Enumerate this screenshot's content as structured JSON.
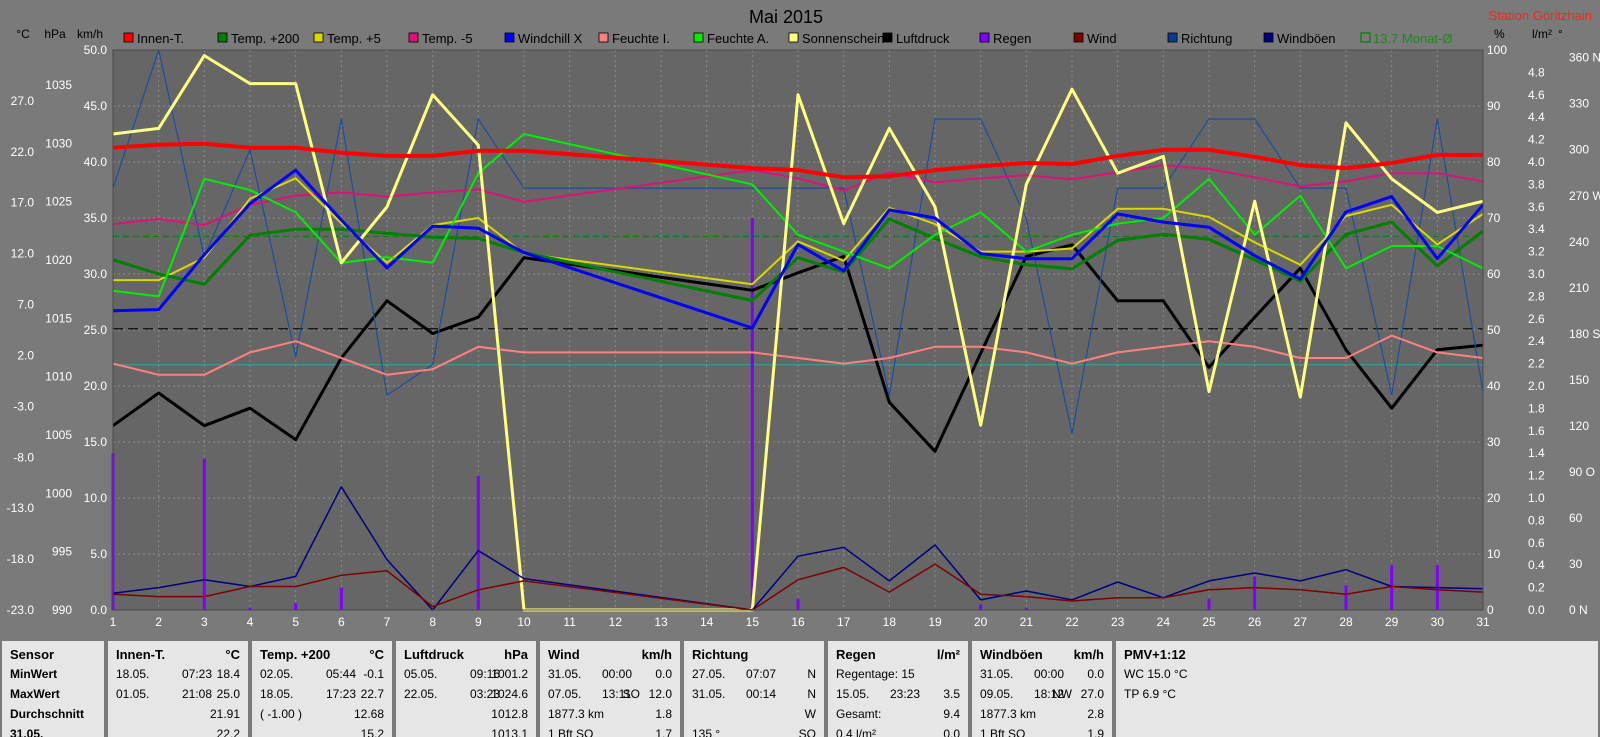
{
  "chart_data": {
    "type": "line",
    "title": "Mai 2015",
    "station": "Station Göritzhain",
    "x": [
      1,
      2,
      3,
      4,
      5,
      6,
      7,
      8,
      9,
      10,
      11,
      12,
      13,
      14,
      15,
      16,
      17,
      18,
      19,
      20,
      21,
      22,
      23,
      24,
      25,
      26,
      27,
      28,
      29,
      30,
      31
    ],
    "xlim": [
      1,
      31
    ],
    "axes": {
      "temp": {
        "unit": "°C",
        "min": -23,
        "max": 32,
        "ticks": [
          "27.0",
          "22.0",
          "17.0",
          "12.0",
          "7.0",
          "2.0",
          "-3.0",
          "-8.0",
          "-13.0",
          "-18.0",
          "-23.0"
        ],
        "tick_values": [
          27,
          22,
          17,
          12,
          7,
          2,
          -3,
          -8,
          -13,
          -18,
          -23
        ]
      },
      "press": {
        "unit": "hPa",
        "min": 990,
        "max": 1038,
        "ticks": [
          "1035",
          "1030",
          "1025",
          "1020",
          "1015",
          "1010",
          "1005",
          "1000",
          "995",
          "990"
        ],
        "tick_values": [
          1035,
          1030,
          1025,
          1020,
          1015,
          1010,
          1005,
          1000,
          995,
          990
        ]
      },
      "wind": {
        "unit": "km/h",
        "min": 0,
        "max": 50,
        "ticks": [
          "50.0",
          "45.0",
          "40.0",
          "35.0",
          "30.0",
          "25.0",
          "20.0",
          "15.0",
          "10.0",
          "5.0",
          "0.0"
        ],
        "tick_values": [
          50,
          45,
          40,
          35,
          30,
          25,
          20,
          15,
          10,
          5,
          0
        ]
      },
      "pct": {
        "unit": "%",
        "min": 0,
        "max": 100,
        "ticks": [
          "100",
          "90",
          "80",
          "70",
          "60",
          "50",
          "40",
          "30",
          "20",
          "10",
          "0"
        ],
        "tick_values": [
          100,
          90,
          80,
          70,
          60,
          50,
          40,
          30,
          20,
          10,
          0
        ]
      },
      "rain": {
        "unit": "l/m²",
        "min": 0,
        "max": 5,
        "ticks": [
          "4.8",
          "4.6",
          "4.4",
          "4.2",
          "4.0",
          "3.8",
          "3.6",
          "3.4",
          "3.2",
          "3.0",
          "2.8",
          "2.6",
          "2.4",
          "2.2",
          "2.0",
          "1.8",
          "1.6",
          "1.4",
          "1.2",
          "1.0",
          "0.8",
          "0.6",
          "0.4",
          "0.2",
          "0.0"
        ],
        "tick_values": [
          4.8,
          4.6,
          4.4,
          4.2,
          4.0,
          3.8,
          3.6,
          3.4,
          3.2,
          3.0,
          2.8,
          2.6,
          2.4,
          2.2,
          2.0,
          1.8,
          1.6,
          1.4,
          1.2,
          1.0,
          0.8,
          0.6,
          0.4,
          0.2,
          0.0
        ]
      },
      "dir": {
        "unit": "°",
        "min": 0,
        "max": 365,
        "ticks": [
          "360 N",
          "330",
          "300",
          "270 W",
          "240",
          "210",
          "180 S",
          "150",
          "120",
          "90  O",
          "60",
          "30",
          "0   N"
        ],
        "tick_values": [
          360,
          330,
          300,
          270,
          240,
          210,
          180,
          150,
          120,
          90,
          60,
          30,
          0
        ]
      }
    },
    "axis_headers": [
      "°C",
      "hPa",
      "km/h",
      "%",
      "l/m²",
      "°"
    ],
    "legend": [
      {
        "name": "Innen-T.",
        "color": "#ff0000"
      },
      {
        "name": "Temp. +200",
        "color": "#008000"
      },
      {
        "name": "Temp. +5",
        "color": "#d8d800"
      },
      {
        "name": "Temp. -5",
        "color": "#e0107a"
      },
      {
        "name": "Windchill X",
        "color": "#0000ff"
      },
      {
        "name": "Feuchte I.",
        "color": "#ff8080"
      },
      {
        "name": "Feuchte A.",
        "color": "#00ee00"
      },
      {
        "name": "Sonnenschein",
        "color": "#ffff80"
      },
      {
        "name": "Luftdruck",
        "color": "#000000"
      },
      {
        "name": "Regen",
        "color": "#8000ff"
      },
      {
        "name": "Wind",
        "color": "#800000"
      },
      {
        "name": "Richtung",
        "color": "#0a3a8a"
      },
      {
        "name": "Windböen",
        "color": "#000080"
      }
    ],
    "monthly_avg": {
      "label": "13.7 Monat-Ø",
      "value": 13.7,
      "color": "#008000"
    },
    "series": [
      {
        "name": "Luftdruck",
        "axis": "press",
        "color": "#000000",
        "width": 3,
        "values": [
          1005.8,
          1008.6,
          1005.8,
          1007.3,
          1004.6,
          1011.6,
          1016.5,
          1013.7,
          1015.1,
          1020.2,
          null,
          null,
          null,
          null,
          1017.4,
          1018.9,
          1020.3,
          1007.8,
          1003.6,
          1012.0,
          1020.3,
          1021.3,
          1016.5,
          1016.5,
          1010.8,
          1015.1,
          1019.3,
          1012.3,
          1007.3,
          1012.3,
          1012.7
        ]
      },
      {
        "name": "Richtung",
        "axis": "dir",
        "color": "#1a4fa0",
        "width": 1.2,
        "values": [
          275,
          365,
          230,
          300,
          165,
          320,
          140,
          160,
          320,
          275,
          null,
          null,
          null,
          null,
          275,
          275,
          275,
          140,
          320,
          320,
          255,
          115,
          275,
          275,
          320,
          320,
          275,
          275,
          140,
          320,
          142
        ]
      },
      {
        "name": "Temp. -5",
        "axis": "temp",
        "color": "#e0107a",
        "width": 2,
        "values": [
          14.9,
          15.4,
          14.8,
          16.8,
          17.7,
          18.0,
          17.6,
          18.0,
          18.3,
          17.1,
          null,
          null,
          null,
          null,
          20.2,
          19.4,
          18.2,
          20.0,
          19.0,
          19.4,
          19.7,
          19.3,
          20.0,
          20.7,
          20.3,
          19.5,
          18.6,
          19.1,
          19.9,
          19.9,
          19.1
        ]
      },
      {
        "name": "Feuchte I.",
        "axis": "pct",
        "color": "#ff8080",
        "width": 2,
        "values": [
          44,
          42,
          42,
          46,
          48,
          45,
          42,
          43,
          47,
          46,
          null,
          null,
          null,
          null,
          46,
          45,
          44,
          45,
          47,
          47,
          46,
          44,
          46,
          47,
          48,
          47,
          45,
          45,
          49,
          46,
          45
        ]
      },
      {
        "name": "Temp. +5",
        "axis": "temp",
        "color": "#d8d800",
        "width": 2,
        "values": [
          9.4,
          9.4,
          11.6,
          17.4,
          19.4,
          15.0,
          11.1,
          14.8,
          15.5,
          12.0,
          null,
          null,
          null,
          null,
          9.0,
          13.2,
          11.3,
          16.5,
          14.9,
          12.2,
          12.2,
          12.5,
          16.4,
          16.4,
          15.6,
          13.1,
          10.9,
          15.7,
          16.8,
          12.9,
          15.9
        ]
      },
      {
        "name": "Temp. +200",
        "axis": "temp",
        "color": "#008000",
        "width": 3,
        "values": [
          11.4,
          10.0,
          9.0,
          13.8,
          14.4,
          14.4,
          null,
          13.6,
          13.5,
          12.1,
          null,
          null,
          null,
          null,
          7.4,
          11.6,
          10.2,
          15.4,
          13.5,
          11.7,
          10.9,
          10.5,
          13.3,
          13.9,
          13.4,
          11.4,
          9.3,
          13.9,
          15.1,
          10.8,
          14.2
        ]
      },
      {
        "name": "Feuchte A.",
        "axis": "pct",
        "color": "#00ee00",
        "width": 2,
        "values": [
          57,
          56,
          77,
          75,
          71,
          62,
          63,
          62,
          78,
          85,
          null,
          null,
          null,
          null,
          76,
          67,
          64,
          61,
          67,
          71,
          64,
          67,
          69,
          70,
          77,
          67,
          74,
          61,
          65,
          65,
          61
        ]
      },
      {
        "name": "Sonnenschein",
        "axis": "pct",
        "color": "#ffff80",
        "width": 3,
        "values": [
          85,
          86,
          99,
          94,
          94,
          62,
          72,
          92,
          83,
          0,
          null,
          null,
          null,
          null,
          0,
          92,
          69,
          86,
          72,
          33,
          76,
          93,
          78,
          81,
          39,
          73,
          38,
          87,
          77,
          71,
          73
        ]
      },
      {
        "name": "Windchill X",
        "axis": "temp",
        "color": "#0000ff",
        "width": 3,
        "values": [
          6.4,
          6.5,
          11.9,
          16.9,
          20.2,
          15.3,
          10.6,
          14.7,
          14.5,
          12.1,
          null,
          null,
          null,
          null,
          4.7,
          12.9,
          10.3,
          16.3,
          15.5,
          12.0,
          11.5,
          11.5,
          15.9,
          15.1,
          14.6,
          11.8,
          9.5,
          16.1,
          17.6,
          11.5,
          16.8
        ]
      },
      {
        "name": "Innen-T.",
        "axis": "temp",
        "color": "#ff0000",
        "width": 4,
        "values": [
          22.4,
          22.7,
          22.8,
          22.4,
          22.4,
          21.9,
          21.6,
          21.6,
          22.1,
          22.1,
          null,
          null,
          null,
          null,
          20.4,
          20.2,
          19.5,
          19.6,
          20.2,
          20.6,
          20.9,
          20.8,
          21.6,
          22.2,
          22.2,
          21.5,
          20.7,
          20.4,
          20.9,
          21.7,
          21.7
        ]
      },
      {
        "name": "Windböen",
        "axis": "wind",
        "color": "#000080",
        "width": 1.5,
        "values": [
          1.5,
          2.0,
          2.7,
          2.1,
          3.0,
          11.0,
          4.5,
          0.0,
          5.3,
          2.8,
          null,
          null,
          null,
          null,
          0.0,
          4.8,
          5.6,
          2.6,
          5.8,
          0.9,
          1.7,
          0.9,
          2.5,
          1.1,
          2.6,
          3.3,
          2.6,
          3.6,
          2.1,
          2.0,
          1.9
        ]
      },
      {
        "name": "Wind",
        "axis": "wind",
        "color": "#800000",
        "width": 1.5,
        "values": [
          1.4,
          1.2,
          1.2,
          2.1,
          2.1,
          3.1,
          3.5,
          0.3,
          1.8,
          2.6,
          null,
          null,
          null,
          null,
          0.0,
          2.7,
          3.8,
          1.6,
          4.1,
          1.4,
          1.2,
          0.8,
          1.1,
          1.1,
          1.8,
          2.0,
          1.8,
          1.4,
          2.1,
          1.8,
          1.6
        ]
      }
    ],
    "rain_bars": {
      "axis": "rain",
      "color": "#8000ff",
      "values": [
        1.4,
        0,
        1.35,
        0.02,
        0.06,
        0.2,
        0,
        0,
        1.2,
        0,
        0,
        0,
        0,
        0,
        3.5,
        0.1,
        0,
        0,
        0,
        0.05,
        0.02,
        0,
        0,
        0,
        0.1,
        0.3,
        0,
        0.22,
        0.4,
        0.4,
        0
      ]
    },
    "reference_lines": [
      {
        "axis": "press",
        "value": 1014.1,
        "color": "#000000",
        "dash": "10,5",
        "width": 1.2
      },
      {
        "axis": "temp",
        "value": 13.7,
        "color": "#008000",
        "dash": "6,4",
        "width": 1
      },
      {
        "axis": "pct",
        "value": 43.8,
        "color": "#3aa0a0",
        "dash": "",
        "width": 1
      }
    ]
  },
  "stats": {
    "sensor": {
      "title": "Sensor",
      "rows": [
        "MinWert",
        "MaxWert",
        "Durchschnitt",
        "31.05."
      ]
    },
    "innen": {
      "title": "Innen-T.",
      "unit": "°C",
      "rows": [
        [
          "18.05.",
          "07:23",
          "18.4"
        ],
        [
          "01.05.",
          "21:08",
          "25.0"
        ],
        [
          "",
          "",
          "21.91"
        ],
        [
          "",
          "",
          "22.2"
        ]
      ]
    },
    "temp200": {
      "title": "Temp. +200",
      "unit": "°C",
      "rows": [
        [
          "02.05.",
          "05:44",
          "-0.1"
        ],
        [
          "18.05.",
          "17:23",
          "22.7"
        ],
        [
          "( -1.00 )",
          "",
          "12.68"
        ],
        [
          "",
          "",
          "15.2"
        ]
      ]
    },
    "druck": {
      "title": "Luftdruck",
      "unit": "hPa",
      "rows": [
        [
          "05.05.",
          "09:16",
          "1001.2"
        ],
        [
          "22.05.",
          "03:23",
          "1024.6"
        ],
        [
          "",
          "",
          "1012.8"
        ],
        [
          "",
          "",
          "1013.1"
        ]
      ]
    },
    "wind": {
      "title": "Wind",
      "unit": "km/h",
      "rows": [
        [
          "31.05.",
          "00:00",
          "",
          "0.0"
        ],
        [
          "07.05.",
          "13:11",
          "SO",
          "12.0"
        ],
        [
          "1877.3 km",
          "",
          "",
          "1.8"
        ],
        [
          "1 Bft SO",
          "",
          "",
          "1.7"
        ]
      ]
    },
    "richtung": {
      "title": "Richtung",
      "rows": [
        [
          "27.05.",
          "07:07",
          "N"
        ],
        [
          "31.05.",
          "00:14",
          "N"
        ],
        [
          "",
          "",
          "W"
        ],
        [
          "135 °",
          "",
          "SO"
        ]
      ]
    },
    "regen": {
      "title": "Regen",
      "unit": "l/m²",
      "rows": [
        [
          "Regentage: 15",
          ""
        ],
        [
          "15.05.",
          "23:23",
          "3.5"
        ],
        [
          "Gesamt:",
          "",
          "9.4"
        ],
        [
          "0.4 l/m²",
          "",
          "0.0"
        ]
      ]
    },
    "boeen": {
      "title": "Windböen",
      "unit": "km/h",
      "rows": [
        [
          "31.05.",
          "00:00",
          "",
          "0.0"
        ],
        [
          "09.05.",
          "18:12",
          "NW",
          "27.0"
        ],
        [
          "1877.3 km",
          "",
          "",
          "2.8"
        ],
        [
          "1 Bft SO",
          "",
          "",
          "1.9"
        ]
      ]
    },
    "pmv": {
      "title": "PMV+1:12",
      "rows": [
        "WC 15.0 °C",
        "TP 6.9 °C"
      ]
    }
  }
}
